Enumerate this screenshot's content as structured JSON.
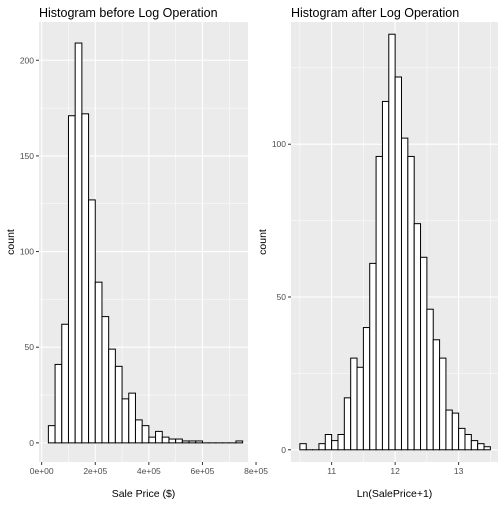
{
  "chart_data": [
    {
      "type": "bar",
      "title": "Histogram before Log Operation",
      "xlabel": "Sale Price ($)",
      "ylabel": "count",
      "xlim": [
        -10000,
        770000
      ],
      "ylim": [
        -10,
        220
      ],
      "x_ticks": [
        0,
        200000,
        400000,
        600000,
        800000
      ],
      "x_tick_labels": [
        "0e+00",
        "2e+05",
        "4e+05",
        "6e+05",
        "8e+05"
      ],
      "y_ticks": [
        0,
        50,
        100,
        150,
        200
      ],
      "y_tick_labels": [
        "0",
        "50",
        "100",
        "150",
        "200"
      ],
      "grid": true,
      "bin_width": 25000,
      "bins": [
        {
          "x": 37500,
          "count": 9
        },
        {
          "x": 62500,
          "count": 41
        },
        {
          "x": 87500,
          "count": 62
        },
        {
          "x": 112500,
          "count": 171
        },
        {
          "x": 137500,
          "count": 209
        },
        {
          "x": 162500,
          "count": 172
        },
        {
          "x": 187500,
          "count": 127
        },
        {
          "x": 212500,
          "count": 84
        },
        {
          "x": 237500,
          "count": 66
        },
        {
          "x": 262500,
          "count": 49
        },
        {
          "x": 287500,
          "count": 40
        },
        {
          "x": 312500,
          "count": 23
        },
        {
          "x": 337500,
          "count": 26
        },
        {
          "x": 362500,
          "count": 12
        },
        {
          "x": 387500,
          "count": 9
        },
        {
          "x": 412500,
          "count": 3
        },
        {
          "x": 437500,
          "count": 6
        },
        {
          "x": 462500,
          "count": 3
        },
        {
          "x": 487500,
          "count": 2
        },
        {
          "x": 512500,
          "count": 2
        },
        {
          "x": 537500,
          "count": 1
        },
        {
          "x": 562500,
          "count": 1
        },
        {
          "x": 587500,
          "count": 1
        },
        {
          "x": 612500,
          "count": 0
        },
        {
          "x": 637500,
          "count": 0
        },
        {
          "x": 662500,
          "count": 0
        },
        {
          "x": 687500,
          "count": 0
        },
        {
          "x": 712500,
          "count": 0
        },
        {
          "x": 737500,
          "count": 1
        }
      ]
    },
    {
      "type": "bar",
      "title": "Histogram after Log Operation",
      "xlabel": "Ln(SalePrice+1)",
      "ylabel": "count",
      "xlim": [
        10.36,
        13.62
      ],
      "ylim": [
        -4,
        140
      ],
      "x_ticks": [
        11,
        12,
        13
      ],
      "x_tick_labels": [
        "11",
        "12",
        "13"
      ],
      "y_ticks": [
        0,
        50,
        100
      ],
      "y_tick_labels": [
        "0",
        "50",
        "100"
      ],
      "grid": true,
      "bin_width": 0.1,
      "bins": [
        {
          "x": 10.55,
          "count": 2
        },
        {
          "x": 10.65,
          "count": 0
        },
        {
          "x": 10.75,
          "count": 0
        },
        {
          "x": 10.85,
          "count": 2
        },
        {
          "x": 10.95,
          "count": 5
        },
        {
          "x": 11.05,
          "count": 3
        },
        {
          "x": 11.15,
          "count": 5
        },
        {
          "x": 11.25,
          "count": 17
        },
        {
          "x": 11.35,
          "count": 30
        },
        {
          "x": 11.45,
          "count": 27
        },
        {
          "x": 11.55,
          "count": 40
        },
        {
          "x": 11.65,
          "count": 61
        },
        {
          "x": 11.75,
          "count": 96
        },
        {
          "x": 11.85,
          "count": 114
        },
        {
          "x": 11.95,
          "count": 136
        },
        {
          "x": 12.05,
          "count": 122
        },
        {
          "x": 12.15,
          "count": 102
        },
        {
          "x": 12.25,
          "count": 96
        },
        {
          "x": 12.35,
          "count": 74
        },
        {
          "x": 12.45,
          "count": 63
        },
        {
          "x": 12.55,
          "count": 46
        },
        {
          "x": 12.65,
          "count": 36
        },
        {
          "x": 12.75,
          "count": 30
        },
        {
          "x": 12.85,
          "count": 13
        },
        {
          "x": 12.95,
          "count": 12
        },
        {
          "x": 13.05,
          "count": 7
        },
        {
          "x": 13.15,
          "count": 5
        },
        {
          "x": 13.25,
          "count": 3
        },
        {
          "x": 13.35,
          "count": 2
        },
        {
          "x": 13.45,
          "count": 1
        }
      ]
    }
  ]
}
